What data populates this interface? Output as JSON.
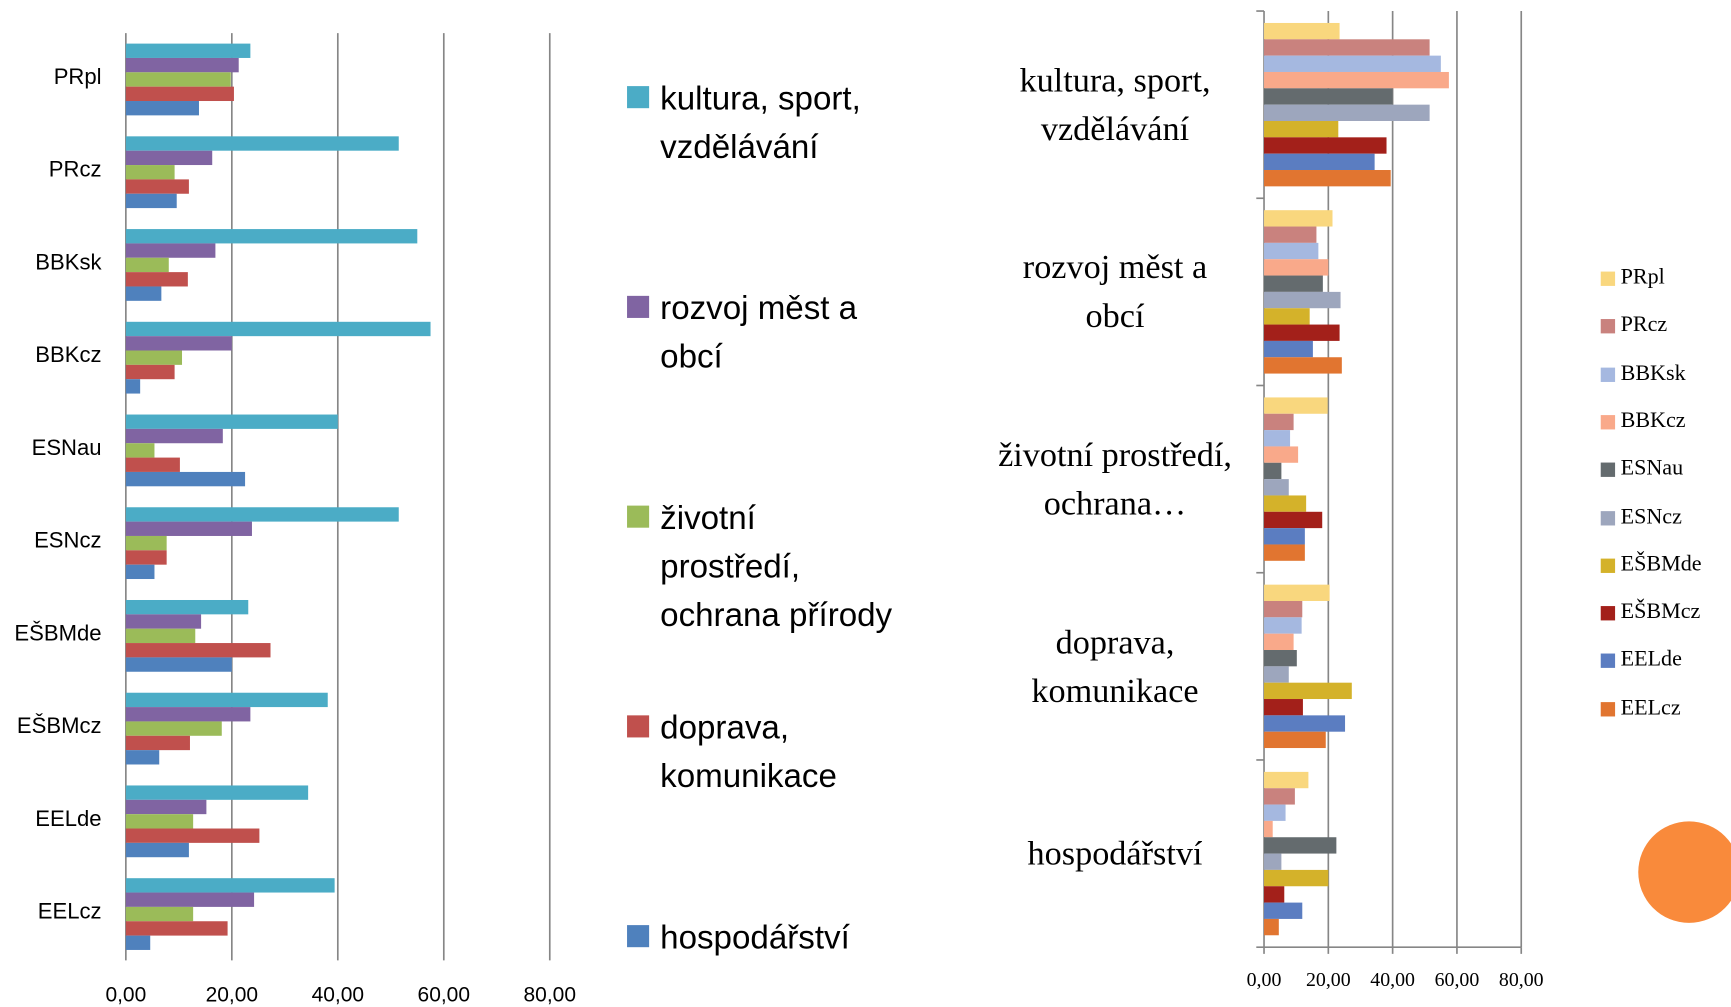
{
  "chart_data": [
    {
      "type": "barh",
      "categories": [
        "PRpl",
        "PRcz",
        "BBKsk",
        "BBKcz",
        "ESNau",
        "ESNcz",
        "EŠBMde",
        "EŠBMcz",
        "EELde",
        "EELcz"
      ],
      "series": [
        {
          "name": "kultura, sport, vzdělávání",
          "color": "#4bacc6",
          "values": [
            23.5,
            51.5,
            55,
            57.5,
            40,
            51.5,
            23.1,
            38.1,
            34.4,
            39.4
          ]
        },
        {
          "name": "rozvoj měst a obcí",
          "color": "#8064a2",
          "values": [
            21.3,
            16.3,
            16.9,
            20,
            18.3,
            23.8,
            14.2,
            23.5,
            15.2,
            24.2
          ]
        },
        {
          "name": "životní prostředí, ochrana přírody",
          "color": "#9bbb59",
          "values": [
            19.8,
            9.2,
            8.1,
            10.6,
            5.4,
            7.7,
            13.1,
            18.1,
            12.7,
            12.7
          ]
        },
        {
          "name": "doprava, komunikace",
          "color": "#c0504d",
          "values": [
            20.4,
            11.9,
            11.7,
            9.2,
            10.2,
            7.7,
            27.3,
            12.1,
            25.2,
            19.2
          ]
        },
        {
          "name": "hospodářství",
          "color": "#4f81bd",
          "values": [
            13.8,
            9.6,
            6.7,
            2.7,
            22.5,
            5.4,
            20,
            6.3,
            11.9,
            4.6
          ]
        }
      ],
      "xlim": [
        0,
        80
      ],
      "xticks": [
        {
          "value": 0,
          "label": "0,00"
        },
        {
          "value": 20,
          "label": "20,00"
        },
        {
          "value": 40,
          "label": "40,00"
        },
        {
          "value": 60,
          "label": "60,00"
        },
        {
          "value": 80,
          "label": "80,00"
        }
      ],
      "grid": true,
      "legend": "right"
    },
    {
      "type": "barh",
      "categories": [
        "kultura, sport, vzdělávání",
        "rozvoj měst a obcí",
        "životní prostředí, ochrana…",
        "doprava, komunikace",
        "hospodářství"
      ],
      "series": [
        {
          "name": "PRpl",
          "color": "#f9d77e",
          "values": [
            23.5,
            21.3,
            19.8,
            20.4,
            13.8
          ]
        },
        {
          "name": "PRcz",
          "color": "#c9827e",
          "values": [
            51.5,
            16.3,
            9.2,
            11.9,
            9.6
          ]
        },
        {
          "name": "BBKsk",
          "color": "#a5b8e0",
          "values": [
            55,
            16.9,
            8.1,
            11.7,
            6.7
          ]
        },
        {
          "name": "BBKcz",
          "color": "#f9a98a",
          "values": [
            57.5,
            20,
            10.6,
            9.2,
            2.7
          ]
        },
        {
          "name": "ESNau",
          "color": "#646b6e",
          "values": [
            40,
            18.3,
            5.4,
            10.2,
            22.5
          ]
        },
        {
          "name": "ESNcz",
          "color": "#9da6bd",
          "values": [
            51.5,
            23.8,
            7.7,
            7.7,
            5.4
          ]
        },
        {
          "name": "EŠBMde",
          "color": "#d4b22a",
          "values": [
            23.1,
            14.2,
            13.1,
            27.3,
            20
          ]
        },
        {
          "name": "EŠBMcz",
          "color": "#a3201a",
          "values": [
            38.1,
            23.5,
            18.1,
            12.1,
            6.3
          ]
        },
        {
          "name": "EELde",
          "color": "#5b7dc1",
          "values": [
            34.4,
            15.2,
            12.7,
            25.2,
            11.9
          ]
        },
        {
          "name": "EELcz",
          "color": "#e17530",
          "values": [
            39.4,
            24.2,
            12.7,
            19.2,
            4.6
          ]
        }
      ],
      "xlim": [
        0,
        80
      ],
      "xticks": [
        {
          "value": 0,
          "label": "0,00"
        },
        {
          "value": 20,
          "label": "20,00"
        },
        {
          "value": 40,
          "label": "40,00"
        },
        {
          "value": 60,
          "label": "60,00"
        },
        {
          "value": 80,
          "label": "80,00"
        }
      ],
      "grid": true,
      "legend": "right"
    }
  ]
}
